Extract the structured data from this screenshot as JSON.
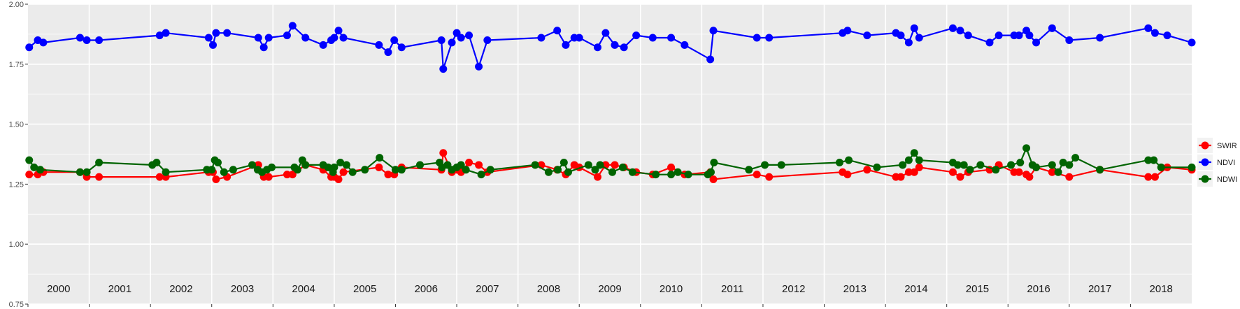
{
  "chart_data": {
    "type": "line",
    "title": "",
    "xlabel": "",
    "ylabel": "",
    "ylim": [
      0.75,
      2.0
    ],
    "y_ticks": [
      "0.75",
      "1.00",
      "1.25",
      "1.50",
      "1.75",
      "2.00"
    ],
    "xlim": [
      2000.0,
      2019.0
    ],
    "year_labels": [
      "2000",
      "2001",
      "2002",
      "2003",
      "2004",
      "2005",
      "2006",
      "2007",
      "2008",
      "2009",
      "2010",
      "2011",
      "2012",
      "2013",
      "2014",
      "2015",
      "2016",
      "2017",
      "2018"
    ],
    "grid": true,
    "legend_position": "right",
    "colors": {
      "panel": "#ebebeb",
      "grid": "#ffffff"
    },
    "series": [
      {
        "name": "SWIR",
        "color": "#ff0000",
        "x": [
          2000.02,
          2000.16,
          2000.25,
          2000.85,
          2000.96,
          2001.16,
          2002.15,
          2002.25,
          2002.95,
          2003.02,
          2003.07,
          2003.25,
          2003.76,
          2003.85,
          2003.93,
          2004.23,
          2004.32,
          2004.53,
          2004.82,
          2004.95,
          2005.0,
          2005.07,
          2005.15,
          2005.73,
          2005.88,
          2005.98,
          2006.1,
          2006.75,
          2006.78,
          2006.92,
          2007.0,
          2007.07,
          2007.2,
          2007.36,
          2007.5,
          2008.38,
          2008.64,
          2008.78,
          2008.92,
          2009.0,
          2009.3,
          2009.43,
          2009.58,
          2009.73,
          2009.93,
          2010.2,
          2010.5,
          2010.72,
          2011.14,
          2011.19,
          2011.9,
          2012.1,
          2013.3,
          2013.38,
          2013.7,
          2014.17,
          2014.25,
          2014.38,
          2014.47,
          2014.55,
          2015.1,
          2015.22,
          2015.35,
          2015.7,
          2015.85,
          2016.1,
          2016.18,
          2016.3,
          2016.35,
          2016.46,
          2016.72,
          2017.0,
          2017.5,
          2018.29,
          2018.4,
          2018.6,
          2019.0
        ],
        "y": [
          1.29,
          1.29,
          1.3,
          1.3,
          1.28,
          1.28,
          1.28,
          1.28,
          1.3,
          1.3,
          1.27,
          1.28,
          1.33,
          1.28,
          1.28,
          1.29,
          1.29,
          1.33,
          1.31,
          1.28,
          1.28,
          1.27,
          1.3,
          1.32,
          1.29,
          1.29,
          1.32,
          1.31,
          1.38,
          1.3,
          1.31,
          1.3,
          1.34,
          1.33,
          1.3,
          1.33,
          1.31,
          1.29,
          1.33,
          1.32,
          1.28,
          1.33,
          1.33,
          1.32,
          1.3,
          1.29,
          1.32,
          1.29,
          1.3,
          1.27,
          1.29,
          1.28,
          1.3,
          1.29,
          1.31,
          1.28,
          1.28,
          1.3,
          1.3,
          1.32,
          1.3,
          1.28,
          1.3,
          1.31,
          1.33,
          1.3,
          1.3,
          1.29,
          1.28,
          1.32,
          1.3,
          1.28,
          1.31,
          1.28,
          1.28,
          1.32,
          1.31
        ]
      },
      {
        "name": "NDVI",
        "color": "#0000ff",
        "x": [
          2000.02,
          2000.16,
          2000.25,
          2000.85,
          2000.96,
          2001.16,
          2002.15,
          2002.25,
          2002.95,
          2003.02,
          2003.07,
          2003.25,
          2003.76,
          2003.85,
          2003.93,
          2004.23,
          2004.32,
          2004.53,
          2004.82,
          2004.95,
          2005.0,
          2005.07,
          2005.15,
          2005.73,
          2005.88,
          2005.98,
          2006.1,
          2006.75,
          2006.78,
          2006.92,
          2007.0,
          2007.07,
          2007.2,
          2007.36,
          2007.5,
          2008.38,
          2008.64,
          2008.78,
          2008.92,
          2009.0,
          2009.3,
          2009.43,
          2009.58,
          2009.73,
          2009.93,
          2010.2,
          2010.5,
          2010.72,
          2011.14,
          2011.19,
          2011.9,
          2012.1,
          2013.3,
          2013.38,
          2013.7,
          2014.17,
          2014.25,
          2014.38,
          2014.47,
          2014.55,
          2015.1,
          2015.22,
          2015.35,
          2015.7,
          2015.85,
          2016.1,
          2016.18,
          2016.3,
          2016.35,
          2016.46,
          2016.72,
          2017.0,
          2017.5,
          2018.29,
          2018.4,
          2018.6,
          2019.0
        ],
        "y": [
          1.82,
          1.85,
          1.84,
          1.86,
          1.85,
          1.85,
          1.87,
          1.88,
          1.86,
          1.83,
          1.88,
          1.88,
          1.86,
          1.82,
          1.86,
          1.87,
          1.91,
          1.86,
          1.83,
          1.85,
          1.86,
          1.89,
          1.86,
          1.83,
          1.8,
          1.85,
          1.82,
          1.85,
          1.73,
          1.84,
          1.88,
          1.86,
          1.87,
          1.74,
          1.85,
          1.86,
          1.89,
          1.83,
          1.86,
          1.86,
          1.82,
          1.88,
          1.83,
          1.82,
          1.87,
          1.86,
          1.86,
          1.83,
          1.77,
          1.89,
          1.86,
          1.86,
          1.88,
          1.89,
          1.87,
          1.88,
          1.87,
          1.84,
          1.9,
          1.86,
          1.9,
          1.89,
          1.87,
          1.84,
          1.87,
          1.87,
          1.87,
          1.89,
          1.87,
          1.84,
          1.9,
          1.85,
          1.86,
          1.9,
          1.88,
          1.87,
          1.84
        ]
      },
      {
        "name": "NDWI",
        "color": "#006400",
        "x": [
          2000.02,
          2000.1,
          2000.2,
          2000.85,
          2000.96,
          2001.16,
          2002.03,
          2002.1,
          2002.25,
          2002.92,
          2003.0,
          2003.05,
          2003.1,
          2003.2,
          2003.35,
          2003.66,
          2003.75,
          2003.82,
          2003.9,
          2003.98,
          2004.35,
          2004.4,
          2004.48,
          2004.53,
          2004.82,
          2004.9,
          2004.98,
          2005.0,
          2005.1,
          2005.2,
          2005.3,
          2005.5,
          2005.74,
          2006.0,
          2006.1,
          2006.4,
          2006.72,
          2006.76,
          2006.85,
          2006.92,
          2007.0,
          2007.07,
          2007.15,
          2007.4,
          2007.55,
          2008.28,
          2008.5,
          2008.65,
          2008.75,
          2008.82,
          2009.15,
          2009.26,
          2009.34,
          2009.54,
          2009.71,
          2009.87,
          2010.25,
          2010.5,
          2010.61,
          2010.78,
          2011.1,
          2011.15,
          2011.2,
          2011.77,
          2012.03,
          2012.3,
          2013.25,
          2013.4,
          2013.86,
          2014.28,
          2014.38,
          2014.47,
          2014.55,
          2015.1,
          2015.18,
          2015.28,
          2015.38,
          2015.55,
          2015.8,
          2016.05,
          2016.2,
          2016.3,
          2016.4,
          2016.46,
          2016.72,
          2016.82,
          2016.9,
          2017.0,
          2017.1,
          2017.5,
          2018.29,
          2018.38,
          2018.5,
          2019.0
        ],
        "y": [
          1.35,
          1.32,
          1.31,
          1.3,
          1.3,
          1.34,
          1.33,
          1.34,
          1.3,
          1.31,
          1.31,
          1.35,
          1.34,
          1.3,
          1.31,
          1.33,
          1.31,
          1.3,
          1.31,
          1.32,
          1.32,
          1.31,
          1.35,
          1.33,
          1.33,
          1.32,
          1.3,
          1.32,
          1.34,
          1.33,
          1.3,
          1.31,
          1.36,
          1.31,
          1.31,
          1.33,
          1.34,
          1.32,
          1.33,
          1.31,
          1.32,
          1.33,
          1.31,
          1.29,
          1.31,
          1.33,
          1.3,
          1.31,
          1.34,
          1.3,
          1.33,
          1.31,
          1.33,
          1.3,
          1.32,
          1.3,
          1.29,
          1.29,
          1.3,
          1.29,
          1.29,
          1.3,
          1.34,
          1.31,
          1.33,
          1.33,
          1.34,
          1.35,
          1.32,
          1.33,
          1.35,
          1.38,
          1.35,
          1.34,
          1.33,
          1.33,
          1.31,
          1.33,
          1.31,
          1.33,
          1.34,
          1.4,
          1.33,
          1.32,
          1.33,
          1.3,
          1.34,
          1.33,
          1.36,
          1.31,
          1.35,
          1.35,
          1.32,
          1.32
        ]
      }
    ]
  }
}
